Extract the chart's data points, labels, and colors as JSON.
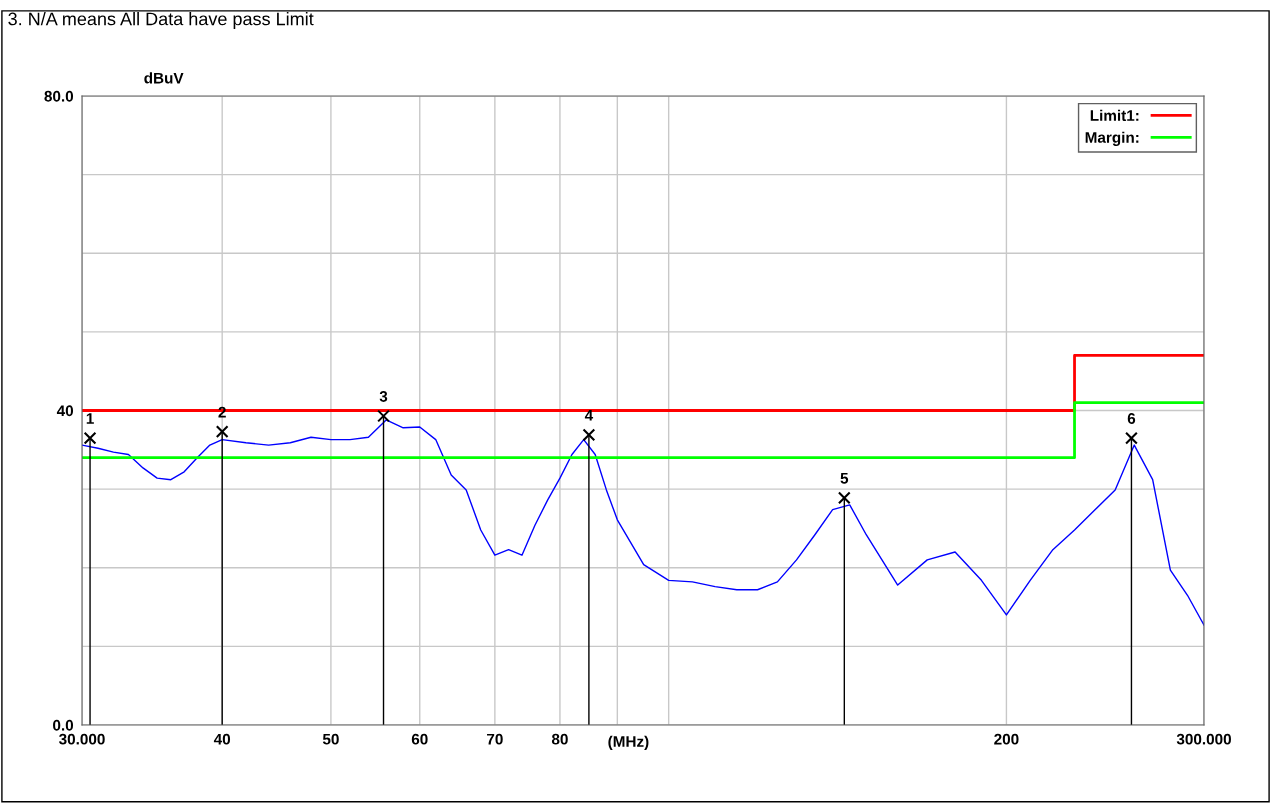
{
  "chart_data": {
    "type": "line",
    "annotations": [
      "3. N/A means All Data have pass Limit",
      {
        "text": "1",
        "x": 30.5,
        "y": 36.5
      },
      {
        "text": "2",
        "x": 40.0,
        "y": 37.3
      },
      {
        "text": "3",
        "x": 55.7,
        "y": 39.3
      },
      {
        "text": "4",
        "x": 84.9,
        "y": 36.9
      },
      {
        "text": "5",
        "x": 143.4,
        "y": 28.9
      },
      {
        "text": "6",
        "x": 258.5,
        "y": 36.5
      }
    ],
    "xlabel": "(MHz)",
    "ylabel": "dBuV",
    "log": "x",
    "grid": true,
    "legend": "top right",
    "xlim": [
      30,
      300
    ],
    "ylim": [
      0,
      80
    ],
    "xticks": [
      {
        "value": 30,
        "label": "30.000"
      },
      40,
      50,
      60,
      70,
      80,
      {
        "value": 90,
        "label": null
      },
      {
        "value": 100,
        "label": null
      },
      200,
      {
        "value": 300,
        "label": "300.000"
      }
    ],
    "yticks": [
      {
        "value": 0,
        "label": "0.0"
      },
      {
        "value": 10,
        "label": null
      },
      {
        "value": 20,
        "label": null
      },
      {
        "value": 30,
        "label": null
      },
      40,
      {
        "value": 50,
        "label": null
      },
      {
        "value": 60,
        "label": null
      },
      {
        "value": 70,
        "label": null
      },
      {
        "value": 80,
        "label": "80.0"
      }
    ],
    "series": [
      {
        "color": "#0000ff",
        "x": [
          30,
          31,
          32,
          33,
          34,
          35,
          36,
          37,
          38,
          39,
          40,
          42,
          44,
          46,
          48,
          50,
          52,
          54,
          56,
          58,
          60,
          62,
          64,
          66,
          68,
          70,
          72,
          74,
          76,
          78,
          80,
          82,
          84,
          86,
          88,
          90,
          95,
          100,
          105,
          110,
          115,
          120,
          125,
          130,
          135,
          140,
          145,
          150,
          160,
          170,
          180,
          190,
          200,
          210,
          220,
          230,
          240,
          250,
          260,
          270,
          280,
          290,
          300
        ],
        "values": [
          35.6,
          35.2,
          34.7,
          34.4,
          32.7,
          31.4,
          31.2,
          32.2,
          34.0,
          35.6,
          36.3,
          35.9,
          35.6,
          35.9,
          36.6,
          36.3,
          36.3,
          36.6,
          38.8,
          37.8,
          37.9,
          36.3,
          31.8,
          29.9,
          24.8,
          21.6,
          22.3,
          21.6,
          25.4,
          28.6,
          31.4,
          34.4,
          36.3,
          34.4,
          29.9,
          26.1,
          20.4,
          18.4,
          18.2,
          17.6,
          17.2,
          17.2,
          18.2,
          21.0,
          24.2,
          27.4,
          28.0,
          24.2,
          17.8,
          21.0,
          22.0,
          18.4,
          14.0,
          18.4,
          22.3,
          24.8,
          27.4,
          29.9,
          35.6,
          31.2,
          19.7,
          16.5,
          12.7
        ]
      },
      {
        "name": "Limit1:",
        "color": "#ff0000",
        "x": [
          30,
          230,
          230,
          300
        ],
        "values": [
          40,
          40,
          47,
          47
        ]
      },
      {
        "name": "Margin:",
        "color": "#00ff00",
        "x": [
          30,
          230,
          230,
          300
        ],
        "values": [
          34,
          34,
          41,
          41
        ]
      },
      {
        "type": "lollipop",
        "color": "#000000",
        "marker": "cross",
        "x": [
          30.5,
          40.0,
          55.7,
          84.9,
          143.4,
          258.5
        ],
        "values": [
          36.5,
          37.3,
          39.3,
          36.9,
          28.9,
          36.5
        ]
      }
    ]
  }
}
